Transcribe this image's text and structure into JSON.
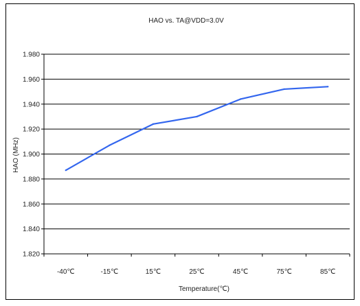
{
  "chart_data": {
    "type": "line",
    "title": "HAO vs. TA@VDD=3.0V",
    "xlabel": "Temperature(℃)",
    "ylabel": "HAO (MHz)",
    "categories": [
      "-40℃",
      "-15℃",
      "15℃",
      "25℃",
      "45℃",
      "75℃",
      "85℃"
    ],
    "series": [
      {
        "values": [
          1.887,
          1.907,
          1.924,
          1.93,
          1.944,
          1.952,
          1.954
        ],
        "color": "#3366ee"
      }
    ],
    "ylim": [
      1.82,
      1.98
    ],
    "yticks": [
      1.82,
      1.84,
      1.86,
      1.88,
      1.9,
      1.92,
      1.94,
      1.96,
      1.98
    ],
    "ytick_labels": [
      "1.820",
      "1.840",
      "1.860",
      "1.880",
      "1.900",
      "1.920",
      "1.940",
      "1.960",
      "1.980"
    ],
    "grid": true,
    "legend": "none"
  }
}
